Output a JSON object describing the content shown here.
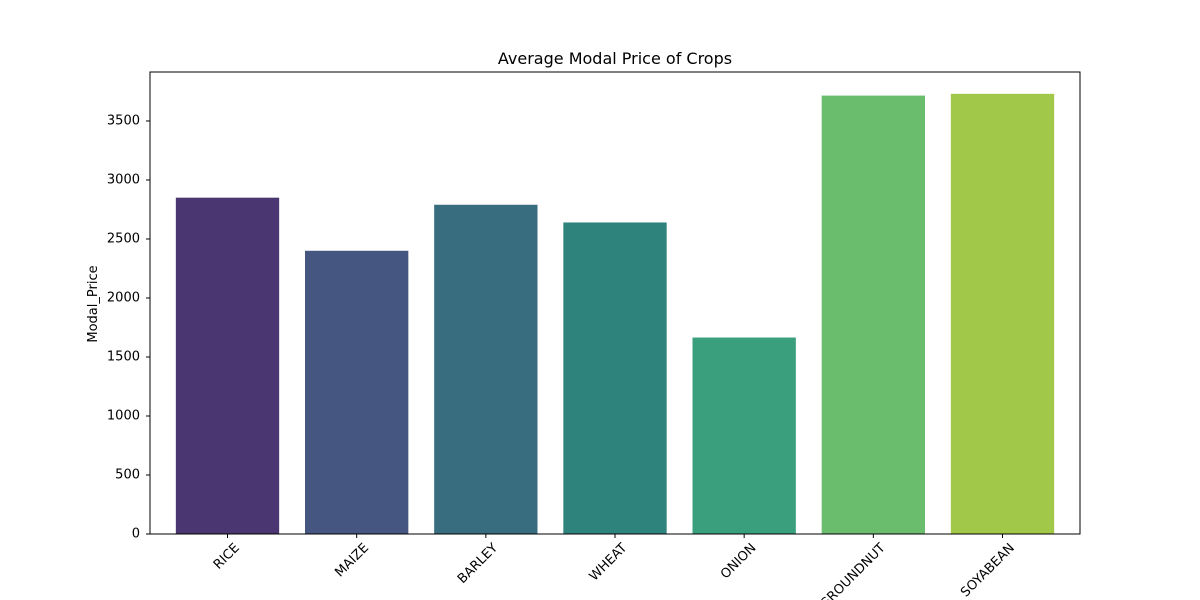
{
  "chart_data": {
    "type": "bar",
    "title": "Average Modal Price of Crops",
    "xlabel": "",
    "ylabel": "Modal_Price",
    "categories": [
      "RICE",
      "MAIZE",
      "BARLEY",
      "WHEAT",
      "ONION",
      "GROUNDNUT",
      "SOYABEAN"
    ],
    "values": [
      2850,
      2400,
      2790,
      2640,
      1665,
      3715,
      3730
    ],
    "colors": [
      "#4a3671",
      "#455681",
      "#386c7f",
      "#2e837c",
      "#3a9f7d",
      "#6abd6c",
      "#a2c84a"
    ],
    "yticks": [
      0,
      500,
      1000,
      1500,
      2000,
      2500,
      3000,
      3500
    ],
    "ylim": [
      0,
      3915
    ],
    "grid": false,
    "legend": false
  }
}
